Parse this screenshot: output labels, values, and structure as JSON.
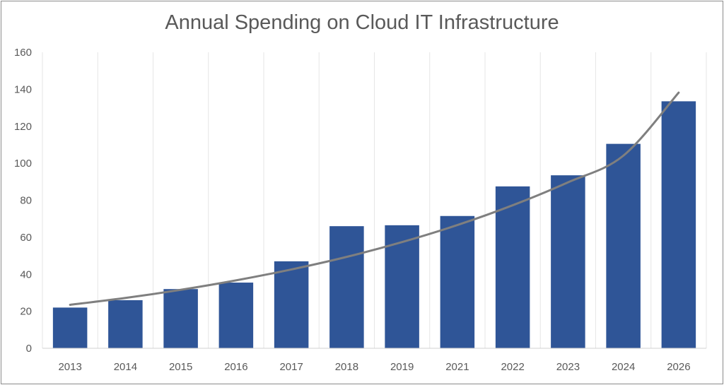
{
  "chart_data": {
    "type": "bar",
    "title": "Annual Spending on Cloud IT Infrastructure",
    "xlabel": "",
    "ylabel": "",
    "categories": [
      "2013",
      "2014",
      "2015",
      "2016",
      "2017",
      "2018",
      "2019",
      "2021",
      "2022",
      "2023",
      "2024",
      "2026"
    ],
    "series": [
      {
        "values": [
          22,
          26,
          32,
          35.5,
          47,
          66,
          66.5,
          71.5,
          87.5,
          93.5,
          110.5,
          133.5
        ]
      }
    ],
    "trendline": {
      "type": "exponential",
      "values": [
        23.5,
        27.2,
        31.6,
        36.7,
        42.6,
        49.4,
        57.4,
        66.6,
        77.3,
        89.7,
        104.1,
        138.2
      ]
    },
    "ylim": [
      0,
      160
    ],
    "yticks": [
      0,
      20,
      40,
      60,
      80,
      100,
      120,
      140,
      160
    ],
    "grid": {
      "vertical": true,
      "horizontal": false
    },
    "legend": "none",
    "colors": {
      "bar": "#2f5597",
      "trendline": "#7f7f7f",
      "grid": "#e6e6e6",
      "axis": "#d0d0d0",
      "text": "#595959"
    }
  }
}
